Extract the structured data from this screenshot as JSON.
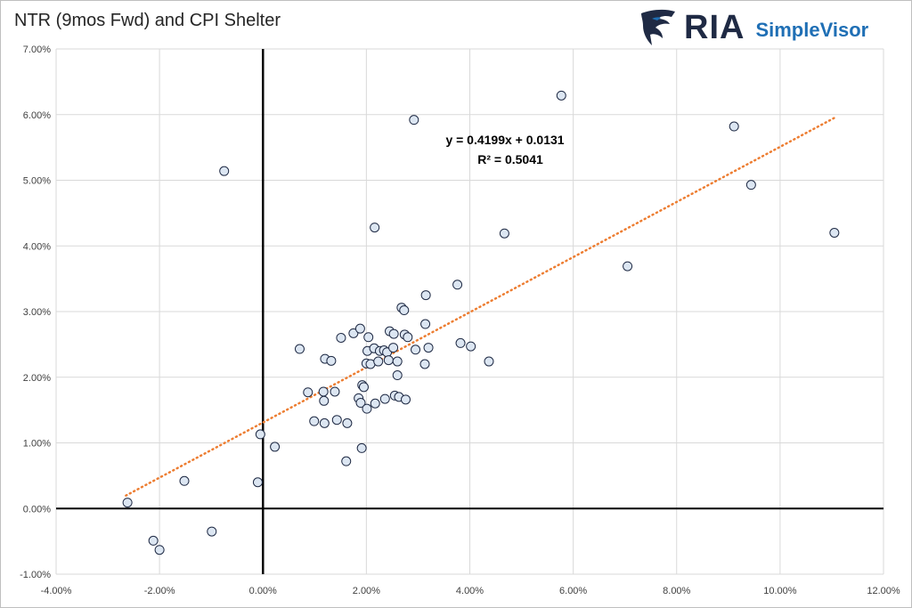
{
  "header": {
    "title": "NTR (9mos Fwd) and CPI Shelter",
    "brand_ria": "RIA",
    "brand_simplevisor": "SimpleVisor"
  },
  "colors": {
    "trend": "#ed7d31",
    "point_fill": "#dce6f2",
    "point_stroke": "#1f2a44",
    "axis": "#000000",
    "grid": "#d9d9d9",
    "brand_dark": "#1f2a44",
    "brand_blue": "#1f6fb5"
  },
  "chart_data": {
    "type": "scatter",
    "title": "NTR (9mos Fwd) and CPI Shelter",
    "xlabel": "",
    "ylabel": "",
    "xlim": [
      -0.04,
      0.12
    ],
    "ylim": [
      -0.01,
      0.07
    ],
    "x_ticks": [
      -0.04,
      -0.02,
      0,
      0.02,
      0.04,
      0.06,
      0.08,
      0.1,
      0.12
    ],
    "x_tick_labels": [
      "-4.00%",
      "-2.00%",
      "0.00%",
      "2.00%",
      "4.00%",
      "6.00%",
      "8.00%",
      "10.00%",
      "12.00%"
    ],
    "y_ticks": [
      -0.01,
      0,
      0.01,
      0.02,
      0.03,
      0.04,
      0.05,
      0.06,
      0.07
    ],
    "y_tick_labels": [
      "-1.00%",
      "0.00%",
      "1.00%",
      "2.00%",
      "3.00%",
      "4.00%",
      "5.00%",
      "6.00%",
      "7.00%"
    ],
    "grid": true,
    "trendline": {
      "slope": 0.4199,
      "intercept": 0.0131,
      "x_range": [
        -0.0265,
        0.1108
      ],
      "equation": "y = 0.4199x + 0.0131",
      "r_squared": "R² = 0.5041"
    },
    "points": [
      [
        -0.0262,
        0.0009
      ],
      [
        -0.0212,
        -0.0049
      ],
      [
        -0.02,
        -0.0063
      ],
      [
        -0.0152,
        0.0042
      ],
      [
        -0.0099,
        -0.0035
      ],
      [
        -0.0075,
        0.0514
      ],
      [
        -0.001,
        0.004
      ],
      [
        -0.0005,
        0.0113
      ],
      [
        0.0023,
        0.0094
      ],
      [
        0.0071,
        0.0243
      ],
      [
        0.0087,
        0.0177
      ],
      [
        0.0099,
        0.0133
      ],
      [
        0.0117,
        0.0178
      ],
      [
        0.0118,
        0.0164
      ],
      [
        0.0119,
        0.013
      ],
      [
        0.012,
        0.0228
      ],
      [
        0.0132,
        0.0225
      ],
      [
        0.0139,
        0.0178
      ],
      [
        0.0143,
        0.0135
      ],
      [
        0.0151,
        0.026
      ],
      [
        0.0161,
        0.0072
      ],
      [
        0.0163,
        0.013
      ],
      [
        0.0175,
        0.0267
      ],
      [
        0.0185,
        0.0168
      ],
      [
        0.0188,
        0.0274
      ],
      [
        0.0189,
        0.0161
      ],
      [
        0.0191,
        0.0092
      ],
      [
        0.0192,
        0.0188
      ],
      [
        0.0195,
        0.0185
      ],
      [
        0.02,
        0.0221
      ],
      [
        0.0201,
        0.0152
      ],
      [
        0.0202,
        0.024
      ],
      [
        0.0204,
        0.0261
      ],
      [
        0.0208,
        0.022
      ],
      [
        0.0215,
        0.0244
      ],
      [
        0.0216,
        0.0428
      ],
      [
        0.0217,
        0.016
      ],
      [
        0.0223,
        0.0224
      ],
      [
        0.0226,
        0.024
      ],
      [
        0.0234,
        0.0241
      ],
      [
        0.0236,
        0.0167
      ],
      [
        0.024,
        0.0238
      ],
      [
        0.0243,
        0.0226
      ],
      [
        0.0245,
        0.027
      ],
      [
        0.0252,
        0.0245
      ],
      [
        0.0253,
        0.0266
      ],
      [
        0.0255,
        0.0172
      ],
      [
        0.026,
        0.0224
      ],
      [
        0.026,
        0.0203
      ],
      [
        0.0263,
        0.017
      ],
      [
        0.0268,
        0.0306
      ],
      [
        0.0273,
        0.0302
      ],
      [
        0.0274,
        0.0265
      ],
      [
        0.0276,
        0.0166
      ],
      [
        0.028,
        0.0261
      ],
      [
        0.0292,
        0.0592
      ],
      [
        0.0295,
        0.0242
      ],
      [
        0.0313,
        0.022
      ],
      [
        0.0314,
        0.0281
      ],
      [
        0.0315,
        0.0325
      ],
      [
        0.032,
        0.0245
      ],
      [
        0.0376,
        0.0341
      ],
      [
        0.0382,
        0.0252
      ],
      [
        0.0402,
        0.0247
      ],
      [
        0.0437,
        0.0224
      ],
      [
        0.0467,
        0.0419
      ],
      [
        0.0577,
        0.0629
      ],
      [
        0.0705,
        0.0369
      ],
      [
        0.0911,
        0.0582
      ],
      [
        0.0944,
        0.0493
      ],
      [
        0.1105,
        0.042
      ]
    ]
  }
}
